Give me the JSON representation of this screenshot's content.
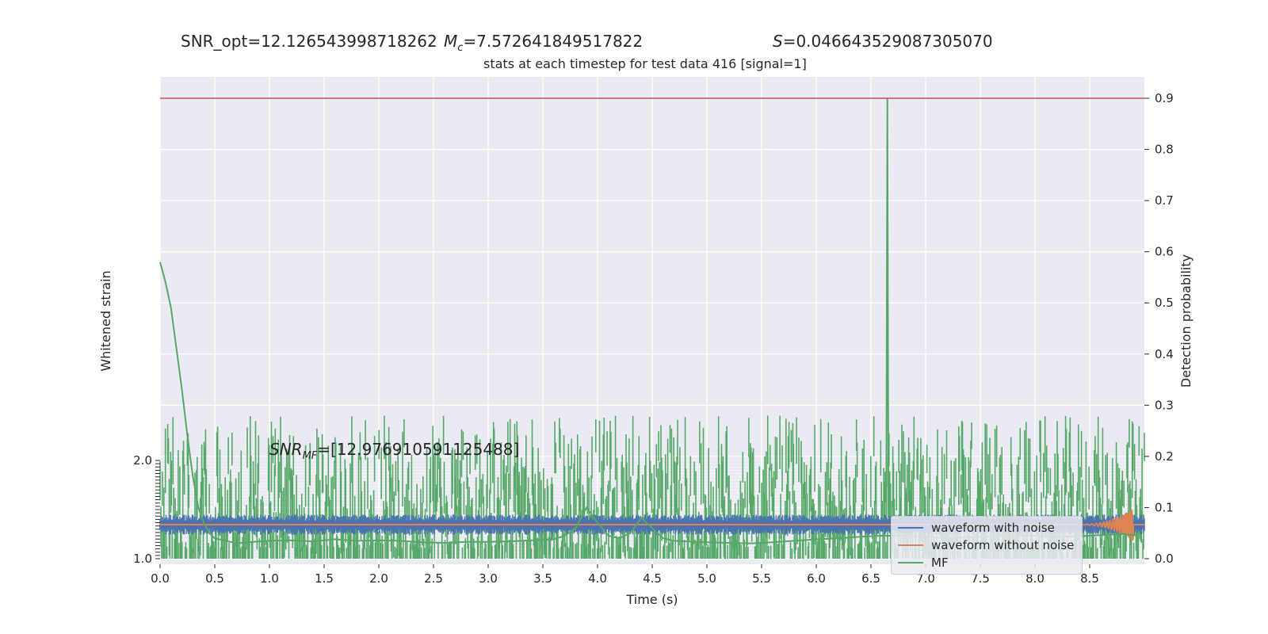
{
  "header": {
    "snr_opt": "SNR_opt=12.126543998718262",
    "mc_symbol": "M",
    "mc_sub": "c",
    "mc_value": "=7.572641849517822",
    "s_symbol": "S",
    "s_value": "=0.046643529087305070"
  },
  "mf_snr": {
    "symbol": "SNR",
    "sub": "MF",
    "value": "=[12.976910591125488]"
  },
  "colors": {
    "noise": "#4c72b0",
    "clean": "#dd8452",
    "mf": "#55a868",
    "threshold": "#c44e52",
    "plot_bg": "#eaeaf2",
    "grid": "#ffffff"
  },
  "chart_data": {
    "type": "line",
    "title": "stats at each timestep for test data 416 [signal=1]",
    "xlabel": "Time (s)",
    "ylabel_left": "Whitened strain",
    "ylabel_right": "Detection probability",
    "xlim": [
      0,
      9.0
    ],
    "xticks": [
      "0.0",
      "0.5",
      "1.0",
      "1.5",
      "2.0",
      "2.5",
      "3.0",
      "3.5",
      "4.0",
      "4.5",
      "5.0",
      "5.5",
      "6.0",
      "6.5",
      "7.0",
      "7.5",
      "8.0",
      "8.5"
    ],
    "ylim_left": [
      -1.0,
      2.0
    ],
    "yticks_left_end": [
      "2.0",
      "1.0"
    ],
    "ylim_right": [
      -0.01,
      0.94
    ],
    "yticks_right": [
      "0.0",
      "0.1",
      "0.2",
      "0.3",
      "0.4",
      "0.5",
      "0.6",
      "0.7",
      "0.8",
      "0.9"
    ],
    "threshold": 0.9,
    "grid": true,
    "legend_position": "lower right",
    "series": [
      {
        "name": "waveform with noise",
        "axis": "left",
        "color_key": "noise",
        "description_range": [
          -0.5,
          0.5
        ],
        "peak_time": 8.87
      },
      {
        "name": "waveform without noise",
        "axis": "left",
        "color_key": "clean",
        "chirp_time": [
          8.3,
          8.9
        ]
      },
      {
        "name": "MF",
        "axis": "left",
        "color_key": "mf",
        "x": [
          0.0,
          0.05,
          0.1,
          0.15,
          0.2,
          0.25,
          0.3,
          0.35,
          0.4,
          0.45,
          0.5,
          0.6,
          0.7,
          0.8,
          1.0,
          1.2,
          1.4,
          1.6,
          1.8,
          2.0,
          2.2,
          2.4,
          2.6,
          2.8,
          3.0,
          3.2,
          3.4,
          3.6,
          3.7,
          3.8,
          3.9,
          4.0,
          4.1,
          4.2,
          4.3,
          4.4,
          4.5,
          4.6,
          4.7,
          4.8,
          5.0,
          5.2,
          5.4,
          5.6,
          5.8,
          6.0,
          6.2,
          6.4,
          6.6,
          6.8,
          7.0,
          7.2,
          7.4,
          7.6,
          7.8,
          8.0,
          8.2,
          8.4,
          8.6,
          8.8,
          8.95
        ],
        "y_prob": [
          0.58,
          0.54,
          0.49,
          0.41,
          0.33,
          0.24,
          0.16,
          0.1,
          0.07,
          0.05,
          0.04,
          0.035,
          0.03,
          0.032,
          0.035,
          0.036,
          0.034,
          0.038,
          0.035,
          0.036,
          0.035,
          0.032,
          0.031,
          0.033,
          0.033,
          0.034,
          0.036,
          0.038,
          0.045,
          0.06,
          0.1,
          0.07,
          0.045,
          0.04,
          0.05,
          0.08,
          0.06,
          0.04,
          0.035,
          0.034,
          0.032,
          0.031,
          0.03,
          0.032,
          0.035,
          0.038,
          0.04,
          0.043,
          0.045,
          0.045,
          0.043,
          0.04,
          0.042,
          0.044,
          0.045,
          0.045,
          0.043,
          0.044,
          0.046,
          0.048,
          0.045
        ]
      },
      {
        "name": "Detection probability",
        "axis": "right",
        "color_key": "mf",
        "spike_time": 6.65,
        "spike_value": 0.9,
        "band": [
          0.0,
          0.3
        ]
      }
    ]
  },
  "legend": [
    {
      "label": "waveform with noise",
      "color_key": "noise"
    },
    {
      "label": "waveform without noise",
      "color_key": "clean"
    },
    {
      "label": "MF",
      "color_key": "mf"
    }
  ]
}
